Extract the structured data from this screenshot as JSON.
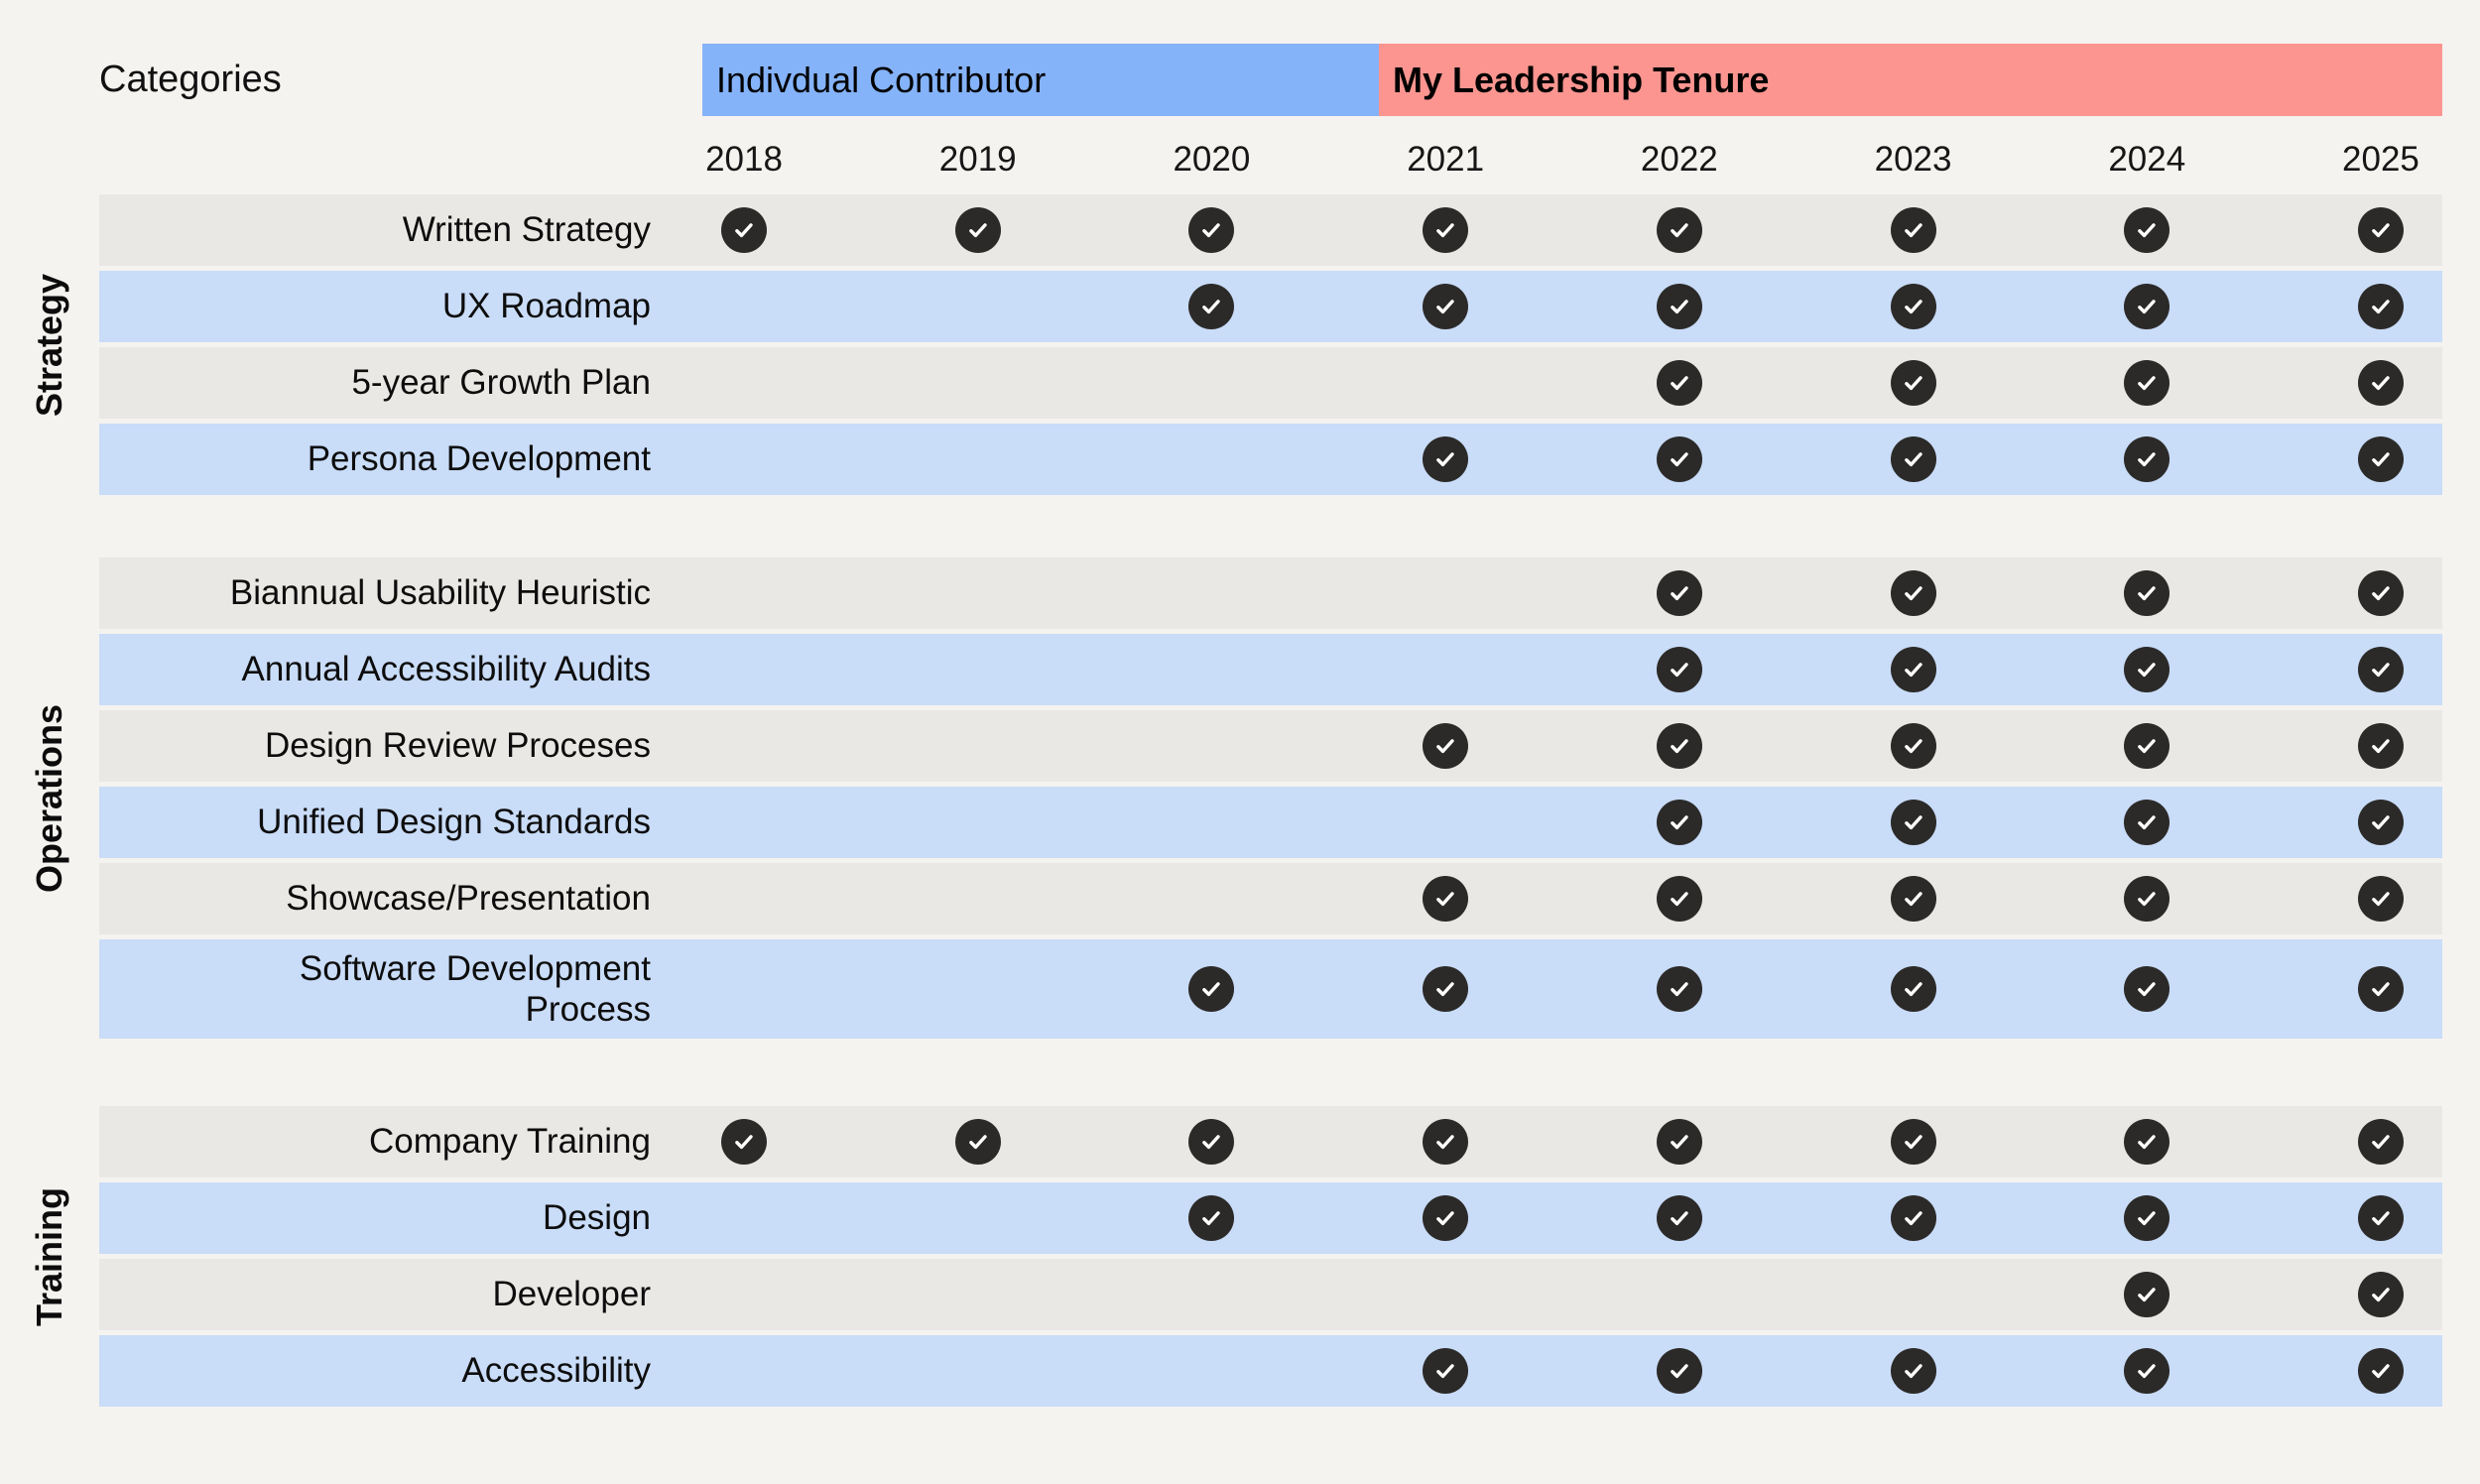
{
  "header": {
    "categories_label": "Categories",
    "era_bands": [
      {
        "label": "Indivdual Contributor",
        "color": "#85b3fa",
        "bold": false,
        "years_spanned": [
          "2018",
          "2019",
          "2020"
        ]
      },
      {
        "label": "My Leadership Tenure",
        "color": "#fc9590",
        "bold": true,
        "years_spanned": [
          "2021",
          "2022",
          "2023",
          "2024",
          "2025"
        ]
      }
    ]
  },
  "chart_data": {
    "type": "table",
    "title": "Categories",
    "cell_marker": "checkmark",
    "columns": [
      "2018",
      "2019",
      "2020",
      "2021",
      "2022",
      "2023",
      "2024",
      "2025"
    ],
    "column_groups": [
      {
        "label": "Indivdual Contributor",
        "columns": [
          "2018",
          "2019",
          "2020"
        ]
      },
      {
        "label": "My Leadership Tenure",
        "columns": [
          "2021",
          "2022",
          "2023",
          "2024",
          "2025"
        ]
      }
    ],
    "sections": [
      {
        "name": "Strategy",
        "rows": [
          {
            "label": "Written Strategy",
            "checked_years": [
              "2018",
              "2019",
              "2020",
              "2021",
              "2022",
              "2023",
              "2024",
              "2025"
            ]
          },
          {
            "label": "UX Roadmap",
            "checked_years": [
              "2020",
              "2021",
              "2022",
              "2023",
              "2024",
              "2025"
            ]
          },
          {
            "label": "5-year Growth Plan",
            "checked_years": [
              "2022",
              "2023",
              "2024",
              "2025"
            ]
          },
          {
            "label": "Persona Development",
            "checked_years": [
              "2021",
              "2022",
              "2023",
              "2024",
              "2025"
            ]
          }
        ]
      },
      {
        "name": "Operations",
        "rows": [
          {
            "label": "Biannual Usability Heuristic",
            "checked_years": [
              "2022",
              "2023",
              "2024",
              "2025"
            ]
          },
          {
            "label": "Annual Accessibility Audits",
            "checked_years": [
              "2022",
              "2023",
              "2024",
              "2025"
            ]
          },
          {
            "label": "Design Review Proceses",
            "checked_years": [
              "2021",
              "2022",
              "2023",
              "2024",
              "2025"
            ]
          },
          {
            "label": "Unified Design Standards",
            "checked_years": [
              "2022",
              "2023",
              "2024",
              "2025"
            ]
          },
          {
            "label": "Showcase/Presentation",
            "checked_years": [
              "2021",
              "2022",
              "2023",
              "2024",
              "2025"
            ]
          },
          {
            "label": "Software Development Process",
            "two_line": true,
            "checked_years": [
              "2020",
              "2021",
              "2022",
              "2023",
              "2024",
              "2025"
            ]
          }
        ]
      },
      {
        "name": "Training",
        "rows": [
          {
            "label": "Company Training",
            "checked_years": [
              "2018",
              "2019",
              "2020",
              "2021",
              "2022",
              "2023",
              "2024",
              "2025"
            ]
          },
          {
            "label": "Design",
            "checked_years": [
              "2020",
              "2021",
              "2022",
              "2023",
              "2024",
              "2025"
            ]
          },
          {
            "label": "Developer",
            "checked_years": [
              "2024",
              "2025"
            ]
          },
          {
            "label": "Accessibility",
            "checked_years": [
              "2021",
              "2022",
              "2023",
              "2024",
              "2025"
            ]
          }
        ]
      }
    ]
  },
  "colors": {
    "background": "#f5f3ef",
    "row_gray": "#eae8e4",
    "row_blue": "#c9dcf8",
    "band_blue": "#85b3fa",
    "band_red": "#fc9590",
    "check_circle": "#2b2a28",
    "check_mark": "#ffffff",
    "text": "#141414"
  }
}
